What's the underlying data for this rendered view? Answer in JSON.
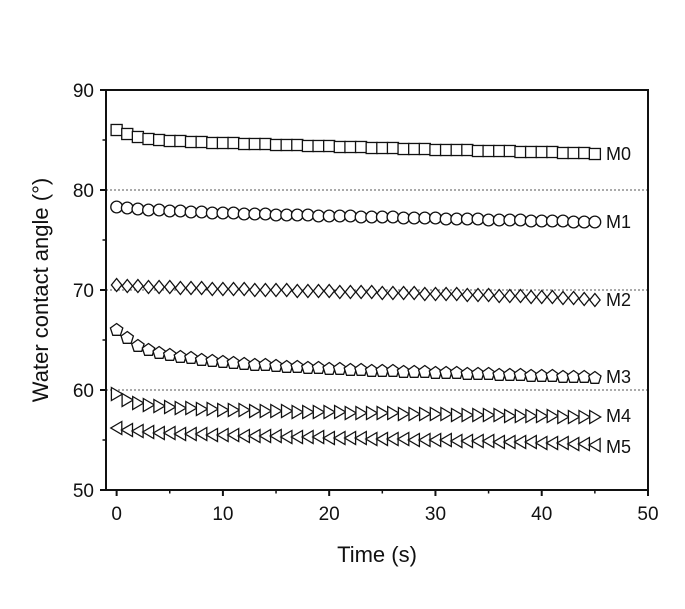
{
  "chart_data": {
    "type": "scatter",
    "xlabel": "Time (s)",
    "ylabel": "Water contact angle (°)",
    "xlim": [
      -1,
      50
    ],
    "ylim": [
      50,
      90
    ],
    "xticks": [
      0,
      10,
      20,
      30,
      40,
      50
    ],
    "yticks": [
      50,
      60,
      70,
      80,
      90
    ],
    "reference_lines": [
      60,
      70,
      80
    ],
    "x": [
      0,
      1,
      2,
      3,
      4,
      5,
      6,
      7,
      8,
      9,
      10,
      11,
      12,
      13,
      14,
      15,
      16,
      17,
      18,
      19,
      20,
      21,
      22,
      23,
      24,
      25,
      26,
      27,
      28,
      29,
      30,
      31,
      32,
      33,
      34,
      35,
      36,
      37,
      38,
      39,
      40,
      41,
      42,
      43,
      44,
      45
    ],
    "series": [
      {
        "name": "M0",
        "marker": "square",
        "values": [
          86.0,
          85.6,
          85.3,
          85.1,
          85.0,
          84.9,
          84.9,
          84.8,
          84.8,
          84.7,
          84.7,
          84.7,
          84.6,
          84.6,
          84.6,
          84.5,
          84.5,
          84.5,
          84.4,
          84.4,
          84.4,
          84.3,
          84.3,
          84.3,
          84.2,
          84.2,
          84.2,
          84.1,
          84.1,
          84.1,
          84.0,
          84.0,
          84.0,
          84.0,
          83.9,
          83.9,
          83.9,
          83.9,
          83.8,
          83.8,
          83.8,
          83.8,
          83.7,
          83.7,
          83.7,
          83.6
        ]
      },
      {
        "name": "M1",
        "marker": "circle",
        "values": [
          78.3,
          78.2,
          78.1,
          78.0,
          78.0,
          77.9,
          77.9,
          77.8,
          77.8,
          77.7,
          77.7,
          77.7,
          77.6,
          77.6,
          77.6,
          77.5,
          77.5,
          77.5,
          77.5,
          77.4,
          77.4,
          77.4,
          77.4,
          77.3,
          77.3,
          77.3,
          77.3,
          77.2,
          77.2,
          77.2,
          77.2,
          77.1,
          77.1,
          77.1,
          77.1,
          77.0,
          77.0,
          77.0,
          77.0,
          76.9,
          76.9,
          76.9,
          76.9,
          76.8,
          76.8,
          76.8
        ]
      },
      {
        "name": "M2",
        "marker": "diamond",
        "values": [
          70.5,
          70.4,
          70.4,
          70.3,
          70.3,
          70.3,
          70.2,
          70.2,
          70.2,
          70.1,
          70.1,
          70.1,
          70.1,
          70.0,
          70.0,
          70.0,
          70.0,
          69.9,
          69.9,
          69.9,
          69.9,
          69.8,
          69.8,
          69.8,
          69.8,
          69.7,
          69.7,
          69.7,
          69.7,
          69.6,
          69.6,
          69.6,
          69.6,
          69.5,
          69.5,
          69.5,
          69.4,
          69.4,
          69.4,
          69.3,
          69.3,
          69.3,
          69.2,
          69.2,
          69.1,
          69.0
        ]
      },
      {
        "name": "M3",
        "marker": "pentagon",
        "values": [
          66.0,
          65.2,
          64.4,
          64.0,
          63.7,
          63.5,
          63.3,
          63.2,
          63.0,
          62.9,
          62.8,
          62.7,
          62.6,
          62.5,
          62.5,
          62.4,
          62.3,
          62.3,
          62.2,
          62.2,
          62.1,
          62.1,
          62.0,
          62.0,
          61.9,
          61.9,
          61.9,
          61.8,
          61.8,
          61.8,
          61.7,
          61.7,
          61.7,
          61.6,
          61.6,
          61.6,
          61.5,
          61.5,
          61.5,
          61.4,
          61.4,
          61.4,
          61.3,
          61.3,
          61.3,
          61.2
        ]
      },
      {
        "name": "M4",
        "marker": "triangle-right",
        "values": [
          59.6,
          59.0,
          58.7,
          58.5,
          58.4,
          58.3,
          58.2,
          58.2,
          58.1,
          58.1,
          58.0,
          58.0,
          58.0,
          57.9,
          57.9,
          57.9,
          57.9,
          57.8,
          57.8,
          57.8,
          57.8,
          57.8,
          57.7,
          57.7,
          57.7,
          57.7,
          57.7,
          57.6,
          57.6,
          57.6,
          57.6,
          57.6,
          57.5,
          57.5,
          57.5,
          57.5,
          57.5,
          57.4,
          57.4,
          57.4,
          57.4,
          57.4,
          57.3,
          57.3,
          57.3,
          57.3
        ]
      },
      {
        "name": "M5",
        "marker": "triangle-left",
        "values": [
          56.2,
          56.0,
          55.9,
          55.8,
          55.7,
          55.7,
          55.6,
          55.6,
          55.6,
          55.5,
          55.5,
          55.5,
          55.4,
          55.4,
          55.4,
          55.4,
          55.3,
          55.3,
          55.3,
          55.3,
          55.2,
          55.2,
          55.2,
          55.2,
          55.1,
          55.1,
          55.1,
          55.1,
          55.0,
          55.0,
          55.0,
          55.0,
          54.9,
          54.9,
          54.9,
          54.9,
          54.8,
          54.8,
          54.8,
          54.8,
          54.7,
          54.7,
          54.7,
          54.6,
          54.6,
          54.5
        ]
      }
    ],
    "series_labels": [
      {
        "name": "M0",
        "y": 83.6
      },
      {
        "name": "M1",
        "y": 76.8
      },
      {
        "name": "M2",
        "y": 69.0
      },
      {
        "name": "M3",
        "y": 61.3
      },
      {
        "name": "M4",
        "y": 57.4
      },
      {
        "name": "M5",
        "y": 54.3
      }
    ],
    "colors": {
      "axis": "#111111",
      "marker_stroke": "#111111",
      "marker_fill": "#ffffff",
      "reference_line": "#555555"
    }
  }
}
